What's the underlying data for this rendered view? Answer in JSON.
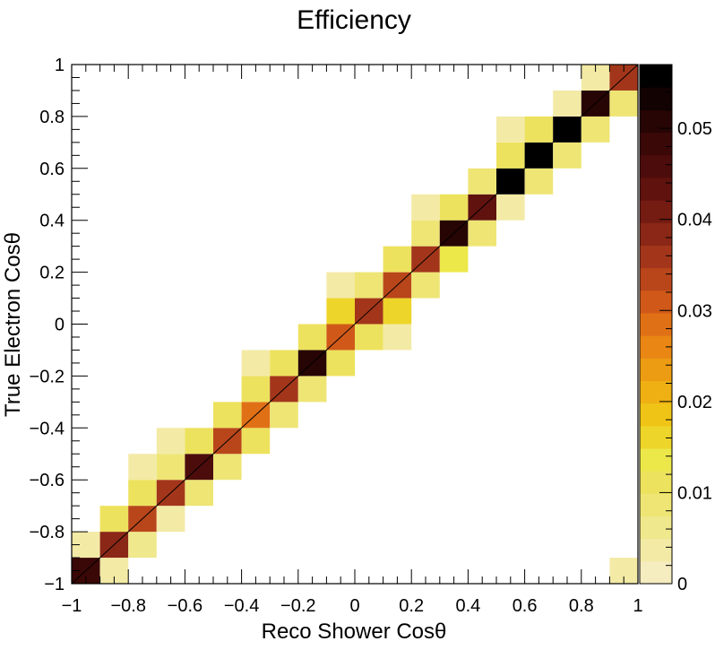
{
  "chart_data": {
    "type": "heatmap",
    "title": "Efficiency",
    "xlabel": "Reco Shower Cosθ",
    "ylabel": "True Electron Cosθ",
    "xlim": [
      -1,
      1
    ],
    "ylim": [
      -1,
      1
    ],
    "bins": 20,
    "z_range": [
      0,
      0.057
    ],
    "x_ticks": [
      -1,
      -0.8,
      -0.6,
      -0.4,
      -0.2,
      0,
      0.2,
      0.4,
      0.6,
      0.8,
      1
    ],
    "x_tick_labels": [
      "−1",
      "−0.8",
      "−0.6",
      "−0.4",
      "−0.2",
      "0",
      "0.2",
      "0.4",
      "0.6",
      "0.8",
      "1"
    ],
    "y_ticks": [
      -1,
      -0.8,
      -0.6,
      -0.4,
      -0.2,
      0,
      0.2,
      0.4,
      0.6,
      0.8,
      1
    ],
    "y_tick_labels": [
      "−1",
      "−0.8",
      "−0.6",
      "−0.4",
      "−0.2",
      "0",
      "0.2",
      "0.4",
      "0.6",
      "0.8",
      "1"
    ],
    "z_ticks": [
      0,
      0.01,
      0.02,
      0.03,
      0.04,
      0.05
    ],
    "z_tick_labels": [
      "0",
      "0.01",
      "0.02",
      "0.03",
      "0.04",
      "0.05"
    ],
    "palette": [
      "#f5ecc0",
      "#f3eaa6",
      "#f0e88c",
      "#eee575",
      "#ede25e",
      "#ece84a",
      "#eed52a",
      "#efc417",
      "#eeb013",
      "#ec9c12",
      "#e98614",
      "#e07016",
      "#d0591a",
      "#b9461b",
      "#a3361a",
      "#8a2716",
      "#741b12",
      "#5f120e",
      "#4c0c0b",
      "#3a0807",
      "#260504",
      "#120202",
      "#000000"
    ],
    "cells": [
      {
        "x": -1.0,
        "y": -1.0,
        "z": 0.049
      },
      {
        "x": -0.9,
        "y": -1.0,
        "z": 0.004
      },
      {
        "x": -1.0,
        "y": -0.9,
        "z": 0.003
      },
      {
        "x": -0.9,
        "y": -0.9,
        "z": 0.038
      },
      {
        "x": -0.8,
        "y": -0.9,
        "z": 0.007
      },
      {
        "x": -0.9,
        "y": -0.8,
        "z": 0.012
      },
      {
        "x": -0.8,
        "y": -0.8,
        "z": 0.034
      },
      {
        "x": -0.7,
        "y": -0.8,
        "z": 0.004
      },
      {
        "x": -0.8,
        "y": -0.7,
        "z": 0.012
      },
      {
        "x": -0.7,
        "y": -0.7,
        "z": 0.037
      },
      {
        "x": -0.6,
        "y": -0.7,
        "z": 0.009
      },
      {
        "x": -0.8,
        "y": -0.6,
        "z": 0.004
      },
      {
        "x": -0.7,
        "y": -0.6,
        "z": 0.008
      },
      {
        "x": -0.6,
        "y": -0.6,
        "z": 0.046
      },
      {
        "x": -0.5,
        "y": -0.6,
        "z": 0.008
      },
      {
        "x": -0.7,
        "y": -0.5,
        "z": 0.004
      },
      {
        "x": -0.6,
        "y": -0.5,
        "z": 0.012
      },
      {
        "x": -0.5,
        "y": -0.5,
        "z": 0.034
      },
      {
        "x": -0.4,
        "y": -0.5,
        "z": 0.012
      },
      {
        "x": -0.5,
        "y": -0.4,
        "z": 0.012
      },
      {
        "x": -0.4,
        "y": -0.4,
        "z": 0.028
      },
      {
        "x": -0.3,
        "y": -0.4,
        "z": 0.009
      },
      {
        "x": -0.4,
        "y": -0.3,
        "z": 0.012
      },
      {
        "x": -0.3,
        "y": -0.3,
        "z": 0.035
      },
      {
        "x": -0.2,
        "y": -0.3,
        "z": 0.009
      },
      {
        "x": -0.4,
        "y": -0.2,
        "z": 0.004
      },
      {
        "x": -0.3,
        "y": -0.2,
        "z": 0.012
      },
      {
        "x": -0.2,
        "y": -0.2,
        "z": 0.05
      },
      {
        "x": -0.1,
        "y": -0.2,
        "z": 0.012
      },
      {
        "x": -0.2,
        "y": -0.1,
        "z": 0.012
      },
      {
        "x": -0.1,
        "y": -0.1,
        "z": 0.031
      },
      {
        "x": 0.0,
        "y": -0.1,
        "z": 0.012
      },
      {
        "x": 0.1,
        "y": -0.1,
        "z": 0.004
      },
      {
        "x": -0.1,
        "y": 0.0,
        "z": 0.017
      },
      {
        "x": 0.0,
        "y": 0.0,
        "z": 0.036
      },
      {
        "x": 0.1,
        "y": 0.0,
        "z": 0.017
      },
      {
        "x": -0.1,
        "y": 0.1,
        "z": 0.004
      },
      {
        "x": 0.0,
        "y": 0.1,
        "z": 0.009
      },
      {
        "x": 0.1,
        "y": 0.1,
        "z": 0.034
      },
      {
        "x": 0.2,
        "y": 0.1,
        "z": 0.009
      },
      {
        "x": 0.1,
        "y": 0.2,
        "z": 0.012
      },
      {
        "x": 0.2,
        "y": 0.2,
        "z": 0.035
      },
      {
        "x": 0.3,
        "y": 0.2,
        "z": 0.013
      },
      {
        "x": 0.2,
        "y": 0.3,
        "z": 0.009
      },
      {
        "x": 0.3,
        "y": 0.3,
        "z": 0.05
      },
      {
        "x": 0.4,
        "y": 0.3,
        "z": 0.009
      },
      {
        "x": 0.2,
        "y": 0.4,
        "z": 0.004
      },
      {
        "x": 0.3,
        "y": 0.4,
        "z": 0.012
      },
      {
        "x": 0.4,
        "y": 0.4,
        "z": 0.044
      },
      {
        "x": 0.5,
        "y": 0.4,
        "z": 0.004
      },
      {
        "x": 0.4,
        "y": 0.5,
        "z": 0.009
      },
      {
        "x": 0.5,
        "y": 0.5,
        "z": 0.056
      },
      {
        "x": 0.6,
        "y": 0.5,
        "z": 0.009
      },
      {
        "x": 0.5,
        "y": 0.6,
        "z": 0.012
      },
      {
        "x": 0.6,
        "y": 0.6,
        "z": 0.056
      },
      {
        "x": 0.7,
        "y": 0.6,
        "z": 0.009
      },
      {
        "x": 0.5,
        "y": 0.7,
        "z": 0.004
      },
      {
        "x": 0.6,
        "y": 0.7,
        "z": 0.012
      },
      {
        "x": 0.7,
        "y": 0.7,
        "z": 0.056
      },
      {
        "x": 0.8,
        "y": 0.7,
        "z": 0.009
      },
      {
        "x": 0.7,
        "y": 0.8,
        "z": 0.004
      },
      {
        "x": 0.8,
        "y": 0.8,
        "z": 0.05
      },
      {
        "x": 0.9,
        "y": 0.8,
        "z": 0.008
      },
      {
        "x": 0.8,
        "y": 0.9,
        "z": 0.003
      },
      {
        "x": 0.9,
        "y": 0.9,
        "z": 0.036
      },
      {
        "x": 0.9,
        "y": -1.0,
        "z": 0.003
      }
    ],
    "diagonal_line": {
      "from": [
        -1,
        -1
      ],
      "to": [
        1,
        1
      ]
    },
    "grid": false,
    "legend": "colorbar-right"
  }
}
